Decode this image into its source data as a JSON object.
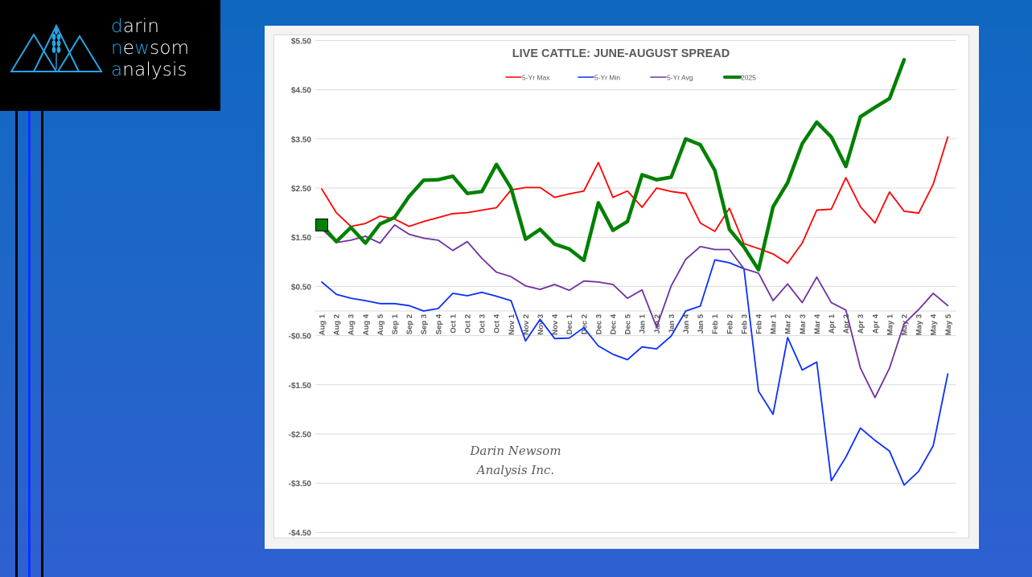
{
  "brand": {
    "name_parts": [
      {
        "hl": "d",
        "rest": "arin"
      },
      {
        "hl": "n",
        "rest": "e",
        "hl2": "w",
        "rest2": "som"
      },
      {
        "hl": "a",
        "rest": "nalysis"
      }
    ],
    "logo_icon": "mountains-wheat-icon",
    "accent_color": "#27a5e6"
  },
  "watermark": {
    "line1": "Darin Newsom",
    "line2": "Analysis Inc."
  },
  "chart_data": {
    "type": "line",
    "title": "LIVE CATTLE: JUNE-AUGUST SPREAD",
    "xlabel": "",
    "ylabel": "",
    "ylim": [
      -4.5,
      5.5
    ],
    "yticks": [
      5.5,
      4.5,
      3.5,
      2.5,
      1.5,
      0.5,
      -0.5,
      -1.5,
      -2.5,
      -3.5,
      -4.5
    ],
    "ytick_labels": [
      "$5.50",
      "$4.50",
      "$3.50",
      "$2.50",
      "$1.50",
      "$0.50",
      "-$0.50",
      "-$1.50",
      "-$2.50",
      "-$3.50",
      "-$4.50"
    ],
    "grid": true,
    "legend_position": "top-center",
    "categories": [
      "Aug 1",
      "Aug 2",
      "Aug 3",
      "Aug 4",
      "Aug 5",
      "Sep 1",
      "Sep 2",
      "Sep 3",
      "Sep 4",
      "Oct 1",
      "Oct 2",
      "Oct 3",
      "Oct 4",
      "Nov 1",
      "Nov 2",
      "Nov 3",
      "Nov 4",
      "Dec 1",
      "Dec 2",
      "Dec 3",
      "Dec 4",
      "Dec 5",
      "Jan 1",
      "Jan 2",
      "Jan 3",
      "Jan 4",
      "Jan 5",
      "Feb 1",
      "Feb 2",
      "Feb 3",
      "Feb 4",
      "Mar 1",
      "Mar 2",
      "Mar 3",
      "Mar 4",
      "Apr 1",
      "Apr 2",
      "Apr 3",
      "Apr 4",
      "May 1",
      "May 2",
      "May 3",
      "May 4",
      "May 5"
    ],
    "series": [
      {
        "name": "5-Yr Max",
        "color": "#ff0000",
        "weight": "thin",
        "values": [
          2.48,
          2.0,
          1.72,
          1.78,
          1.93,
          1.87,
          1.72,
          1.82,
          1.9,
          1.98,
          2.0,
          2.05,
          2.1,
          2.46,
          2.51,
          2.51,
          2.31,
          2.38,
          2.44,
          3.02,
          2.31,
          2.44,
          2.11,
          2.5,
          2.43,
          2.39,
          1.79,
          1.62,
          2.09,
          1.37,
          1.27,
          1.16,
          0.97,
          1.38,
          2.05,
          2.07,
          2.71,
          2.12,
          1.79,
          2.42,
          2.03,
          1.99,
          2.58,
          3.54
        ]
      },
      {
        "name": "5-Yr Min",
        "color": "#0a2eff",
        "weight": "thin",
        "values": [
          0.59,
          0.34,
          0.26,
          0.21,
          0.15,
          0.15,
          0.11,
          0.0,
          0.05,
          0.36,
          0.31,
          0.38,
          0.3,
          0.21,
          -0.61,
          -0.17,
          -0.56,
          -0.55,
          -0.34,
          -0.71,
          -0.88,
          -0.99,
          -0.73,
          -0.77,
          -0.51,
          0.0,
          0.1,
          1.04,
          0.98,
          0.86,
          -1.63,
          -2.1,
          -0.54,
          -1.2,
          -1.04,
          -3.45,
          -2.97,
          -2.38,
          -2.63,
          -2.85,
          -3.54,
          -3.26,
          -2.74,
          -1.28
        ]
      },
      {
        "name": "5-Yr Avg",
        "color": "#7030a0",
        "weight": "thin",
        "values": [
          1.67,
          1.39,
          1.44,
          1.52,
          1.38,
          1.75,
          1.56,
          1.48,
          1.44,
          1.23,
          1.41,
          1.07,
          0.79,
          0.7,
          0.51,
          0.44,
          0.54,
          0.42,
          0.61,
          0.59,
          0.54,
          0.26,
          0.43,
          -0.33,
          0.51,
          1.05,
          1.31,
          1.25,
          1.25,
          0.86,
          0.77,
          0.21,
          0.55,
          0.17,
          0.69,
          0.17,
          0.02,
          -1.16,
          -1.76,
          -1.16,
          -0.26,
          0.03,
          0.36,
          0.11
        ]
      },
      {
        "name": "2025",
        "color": "#008000",
        "weight": "thick",
        "values": [
          1.75,
          1.41,
          1.7,
          1.38,
          1.77,
          1.9,
          2.33,
          2.66,
          2.67,
          2.74,
          2.39,
          2.43,
          2.98,
          2.5,
          1.46,
          1.66,
          1.36,
          1.26,
          1.03,
          2.2,
          1.64,
          1.82,
          2.77,
          2.67,
          2.72,
          3.5,
          3.38,
          2.86,
          1.66,
          1.3,
          0.84,
          2.12,
          2.61,
          3.4,
          3.84,
          3.54,
          2.94,
          3.95,
          4.14,
          4.32,
          5.11,
          null,
          null,
          null
        ],
        "marker_at_first_point": "square"
      }
    ]
  }
}
